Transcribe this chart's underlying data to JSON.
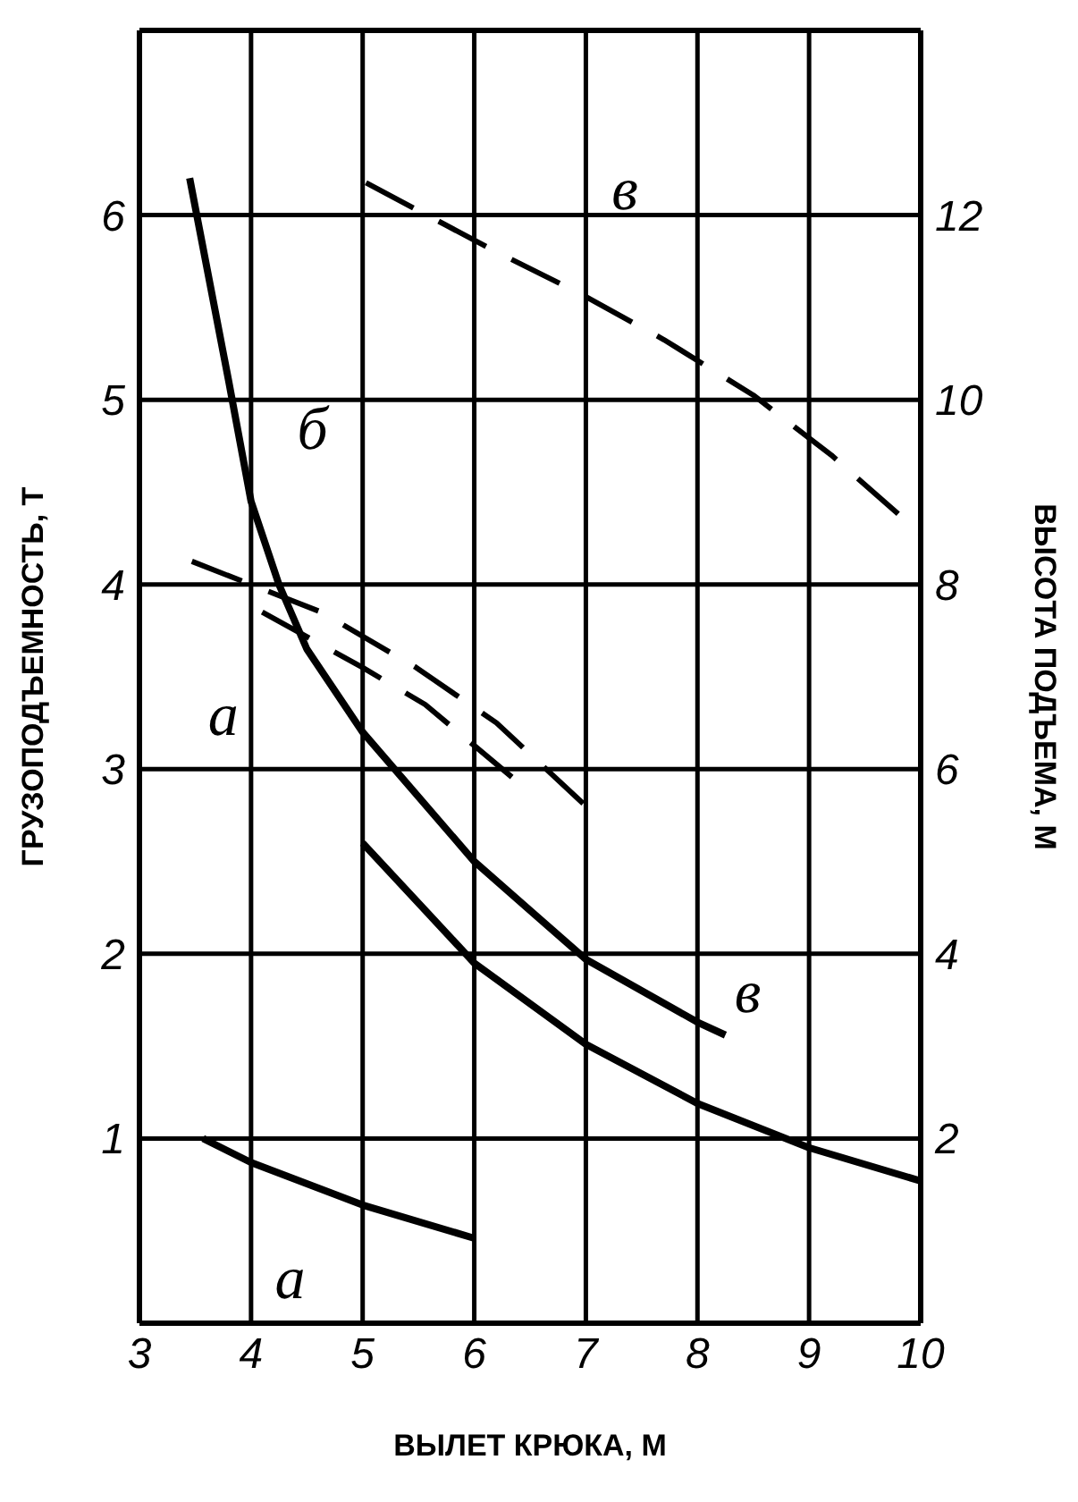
{
  "chart_data": {
    "type": "line",
    "xlabel": "ВЫЛЕТ КРЮКА, М",
    "ylabel": "ГРУЗОПОДЪЕМНОСТЬ, Т",
    "y2label": "ВЫСОТА ПОДЪЕМА, М",
    "xlim": [
      3,
      10
    ],
    "xticks": [
      3,
      4,
      5,
      6,
      7,
      8,
      9,
      10
    ],
    "ylim": [
      0,
      7
    ],
    "yticks": [
      1,
      2,
      3,
      4,
      5,
      6
    ],
    "y2lim": [
      0,
      14
    ],
    "y2ticks": [
      2,
      4,
      6,
      8,
      10,
      12
    ],
    "grid": true,
    "marker": "none",
    "series": [
      {
        "color": "#000000",
        "line_style": "solid",
        "x": [
          3.57,
          4,
          5,
          6
        ],
        "values": [
          1.0,
          0.87,
          0.64,
          0.46
        ]
      },
      {
        "color": "#000000",
        "line_style": "solid",
        "x": [
          3.45,
          3.8,
          4,
          4.25,
          4.5,
          5,
          6,
          7,
          8,
          8.25
        ],
        "values": [
          6.2,
          5.1,
          4.45,
          4.0,
          3.65,
          3.2,
          2.5,
          1.97,
          1.63,
          1.56
        ]
      },
      {
        "color": "#000000",
        "line_style": "solid",
        "x": [
          5,
          6,
          7,
          8,
          9,
          10
        ],
        "values": [
          2.6,
          1.95,
          1.51,
          1.19,
          0.95,
          0.77
        ]
      },
      {
        "color": "#000000",
        "line_style": "dashed",
        "axis": "y2",
        "x": [
          4.1,
          5.0,
          5.56,
          6.4
        ],
        "values": [
          7.7,
          7.1,
          6.7,
          5.85
        ]
      },
      {
        "color": "#000000",
        "line_style": "dashed",
        "axis": "y2",
        "x": [
          3.47,
          4.63,
          5.48,
          6.2,
          7
        ],
        "values": [
          8.25,
          7.7,
          7.1,
          6.5,
          5.6
        ]
      },
      {
        "color": "#000000",
        "line_style": "dashed",
        "axis": "y2",
        "x": [
          5.03,
          6.2,
          6.95,
          7.7,
          8.5,
          9.2,
          10
        ],
        "values": [
          12.35,
          11.6,
          11.15,
          10.65,
          10.05,
          9.4,
          8.55
        ]
      }
    ],
    "annotations": [
      "б",
      "а",
      "в",
      "в",
      "а"
    ]
  }
}
